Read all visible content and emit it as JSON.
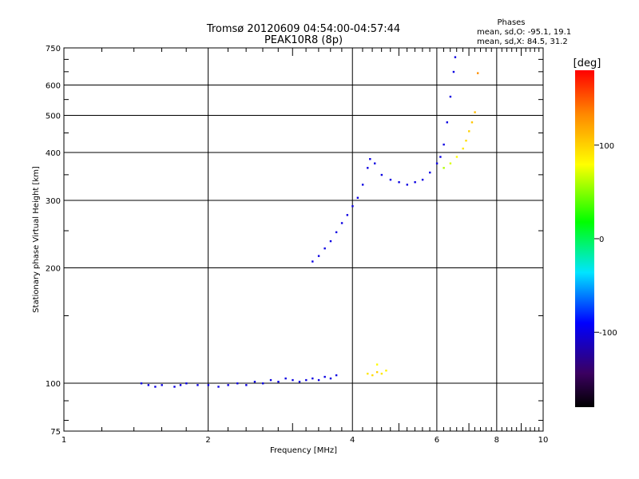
{
  "chart_data": {
    "type": "scatter",
    "title": "Tromsø 20120609 04:54:00-04:57:44",
    "subtitle": "PEAK10R8 (8p)",
    "xlabel": "Frequency [MHz]",
    "ylabel": "Stationary phase Virtual Height [km]",
    "x_scale": "log",
    "y_scale": "log",
    "xlim": [
      1,
      10
    ],
    "ylim": [
      75,
      750
    ],
    "x_major_ticks": [
      1,
      2,
      4,
      6,
      8,
      10
    ],
    "x_tick_labels": [
      "1",
      "2",
      "4",
      "6",
      "8",
      "10"
    ],
    "y_major_ticks": [
      75,
      100,
      200,
      300,
      400,
      500,
      600,
      750
    ],
    "y_tick_labels": [
      "75",
      "100",
      "200",
      "300",
      "400",
      "500",
      "600",
      "750"
    ],
    "grid": true,
    "phases_info": {
      "title": "Phases",
      "line_o": "mean, sd,O: -95.1, 19.1",
      "line_x": "mean, sd,X:  84.5, 31.2"
    },
    "colorbar": {
      "label": "[deg]",
      "range": [
        -180,
        180
      ],
      "ticks": [
        100,
        0,
        -100
      ],
      "tick_labels": [
        "100",
        "0",
        "-100"
      ]
    },
    "series": [
      {
        "values_desc": "E region O-mode trace (phase ~ -100 deg)",
        "points": [
          [
            1.45,
            100,
            -100
          ],
          [
            1.5,
            99,
            -100
          ],
          [
            1.55,
            98,
            -100
          ],
          [
            1.6,
            99,
            -100
          ],
          [
            1.7,
            98,
            -100
          ],
          [
            1.75,
            99,
            -100
          ],
          [
            1.8,
            100,
            -100
          ],
          [
            1.9,
            99,
            -100
          ],
          [
            2.0,
            99,
            -100
          ],
          [
            2.1,
            98,
            -100
          ],
          [
            2.2,
            99,
            -100
          ],
          [
            2.3,
            100,
            -100
          ],
          [
            2.4,
            99,
            -100
          ],
          [
            2.5,
            101,
            -100
          ],
          [
            2.6,
            100,
            -100
          ],
          [
            2.7,
            102,
            -100
          ],
          [
            2.8,
            101,
            -100
          ],
          [
            2.9,
            103,
            -100
          ],
          [
            3.0,
            102,
            -100
          ],
          [
            3.1,
            101,
            -100
          ],
          [
            3.2,
            102,
            -100
          ],
          [
            3.3,
            103,
            -100
          ],
          [
            3.4,
            102,
            -100
          ],
          [
            3.5,
            104,
            -100
          ],
          [
            3.6,
            103,
            -100
          ],
          [
            3.7,
            105,
            -100
          ]
        ]
      },
      {
        "values_desc": "F region O-mode trace",
        "points": [
          [
            3.3,
            208,
            -100
          ],
          [
            3.4,
            215,
            -100
          ],
          [
            3.5,
            225,
            -100
          ],
          [
            3.6,
            235,
            -100
          ],
          [
            3.7,
            248,
            -100
          ],
          [
            3.8,
            262,
            -100
          ],
          [
            3.9,
            275,
            -100
          ],
          [
            4.0,
            290,
            -100
          ],
          [
            4.1,
            305,
            -100
          ],
          [
            4.2,
            330,
            -100
          ],
          [
            4.3,
            365,
            -100
          ],
          [
            4.35,
            385,
            -100
          ],
          [
            4.45,
            375,
            -100
          ],
          [
            4.6,
            350,
            -100
          ],
          [
            4.8,
            340,
            -100
          ],
          [
            5.0,
            335,
            -100
          ],
          [
            5.2,
            330,
            -100
          ],
          [
            5.4,
            335,
            -100
          ],
          [
            5.6,
            340,
            -100
          ],
          [
            5.8,
            355,
            -100
          ],
          [
            6.0,
            375,
            -100
          ],
          [
            6.1,
            390,
            -100
          ],
          [
            6.2,
            420,
            -100
          ],
          [
            6.3,
            480,
            -100
          ],
          [
            6.4,
            560,
            -100
          ],
          [
            6.5,
            650,
            -100
          ],
          [
            6.55,
            710,
            -100
          ]
        ]
      },
      {
        "values_desc": "F region X-mode trace (phase ~ +80 deg)",
        "points": [
          [
            6.2,
            365,
            60
          ],
          [
            6.4,
            375,
            70
          ],
          [
            6.6,
            390,
            80
          ],
          [
            6.8,
            410,
            90
          ],
          [
            6.9,
            430,
            95
          ],
          [
            7.0,
            455,
            100
          ],
          [
            7.1,
            480,
            105
          ],
          [
            7.2,
            510,
            110
          ],
          [
            7.3,
            645,
            130
          ]
        ]
      },
      {
        "values_desc": "Lower trace X-mode cluster near 100 km",
        "points": [
          [
            4.3,
            106,
            90
          ],
          [
            4.4,
            105,
            95
          ],
          [
            4.5,
            107,
            100
          ],
          [
            4.6,
            106,
            90
          ],
          [
            4.7,
            108,
            85
          ],
          [
            4.5,
            112,
            80
          ]
        ]
      }
    ]
  }
}
